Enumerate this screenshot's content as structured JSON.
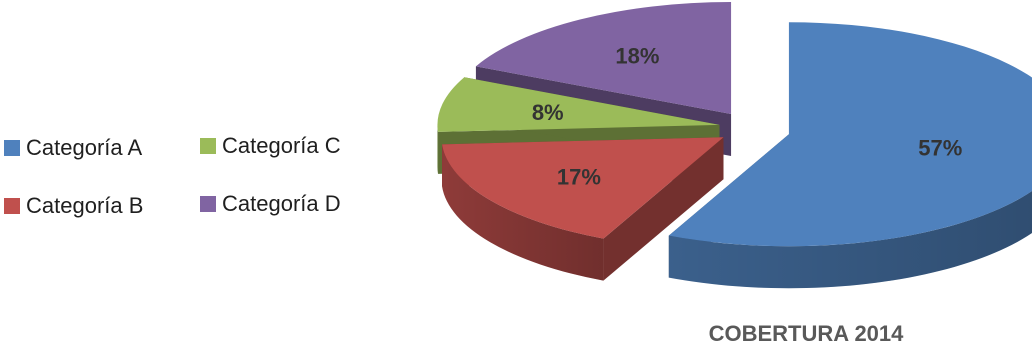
{
  "chart_data": {
    "type": "pie",
    "categories": [
      "Categoría A",
      "Categoría B",
      "Categoría C",
      "Categoría D"
    ],
    "values": [
      57,
      17,
      8,
      18
    ],
    "data_labels": [
      "57%",
      "17%",
      "8%",
      "18%"
    ],
    "colors": [
      "#4F81BD",
      "#C0504D",
      "#9BBB59",
      "#8064A2"
    ],
    "xlabel": "COBERTURA 2014",
    "legend_position": "left",
    "exploded": true,
    "three_d": true
  }
}
